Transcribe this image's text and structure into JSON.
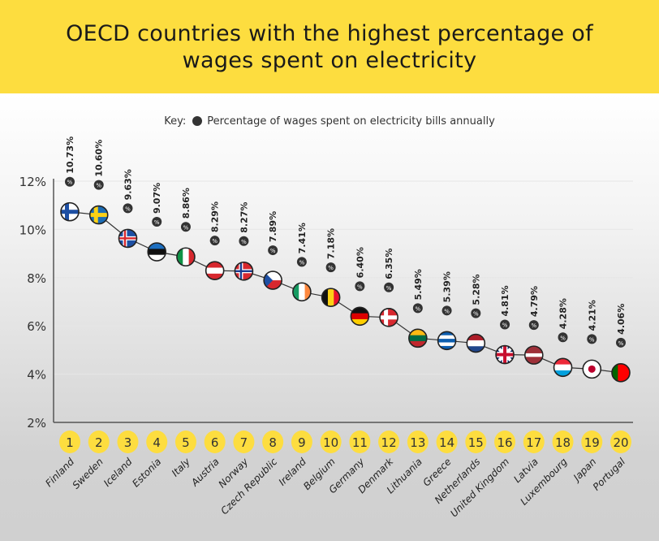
{
  "header": {
    "title": "OECD countries with the highest percentage of wages spent on electricity"
  },
  "key": {
    "label": "Key:",
    "text": "Percentage of wages spent on electricity bills annually"
  },
  "chart_data": {
    "type": "line",
    "title": "OECD countries with the highest percentage of wages spent on electricity",
    "ylim": [
      2,
      12
    ],
    "yticks": [
      2,
      4,
      6,
      8,
      10,
      12
    ],
    "ytick_labels": [
      "2%",
      "4%",
      "6%",
      "8%",
      "10%",
      "12%"
    ],
    "grid": true,
    "ranks": [
      "1",
      "2",
      "3",
      "4",
      "5",
      "6",
      "7",
      "8",
      "9",
      "10",
      "11",
      "12",
      "13",
      "14",
      "15",
      "16",
      "17",
      "18",
      "19",
      "20"
    ],
    "categories": [
      "Finland",
      "Sweden",
      "Iceland",
      "Estonia",
      "Italy",
      "Austria",
      "Norway",
      "Czech Republic",
      "Ireland",
      "Belgium",
      "Germany",
      "Denmark",
      "Lithuania",
      "Greece",
      "Netherlands",
      "United Kingdom",
      "Latvia",
      "Luxembourg",
      "Japan",
      "Portugal"
    ],
    "values": [
      10.73,
      10.6,
      9.63,
      9.07,
      8.86,
      8.29,
      8.27,
      7.89,
      7.41,
      7.18,
      6.4,
      6.35,
      5.49,
      5.39,
      5.28,
      4.81,
      4.79,
      4.28,
      4.21,
      4.06
    ],
    "value_labels": [
      "10.73%",
      "10.60%",
      "9.63%",
      "9.07%",
      "8.86%",
      "8.29%",
      "8.27%",
      "7.89%",
      "7.41%",
      "7.18%",
      "6.40%",
      "6.35%",
      "5.49%",
      "5.39%",
      "5.28%",
      "4.81%",
      "4.79%",
      "4.28%",
      "4.21%",
      "4.06%"
    ],
    "colors": {
      "header": "#fddd3f",
      "rank_badge": "#fddd3f",
      "line": "#333333",
      "marker_icon": "#333333"
    }
  }
}
